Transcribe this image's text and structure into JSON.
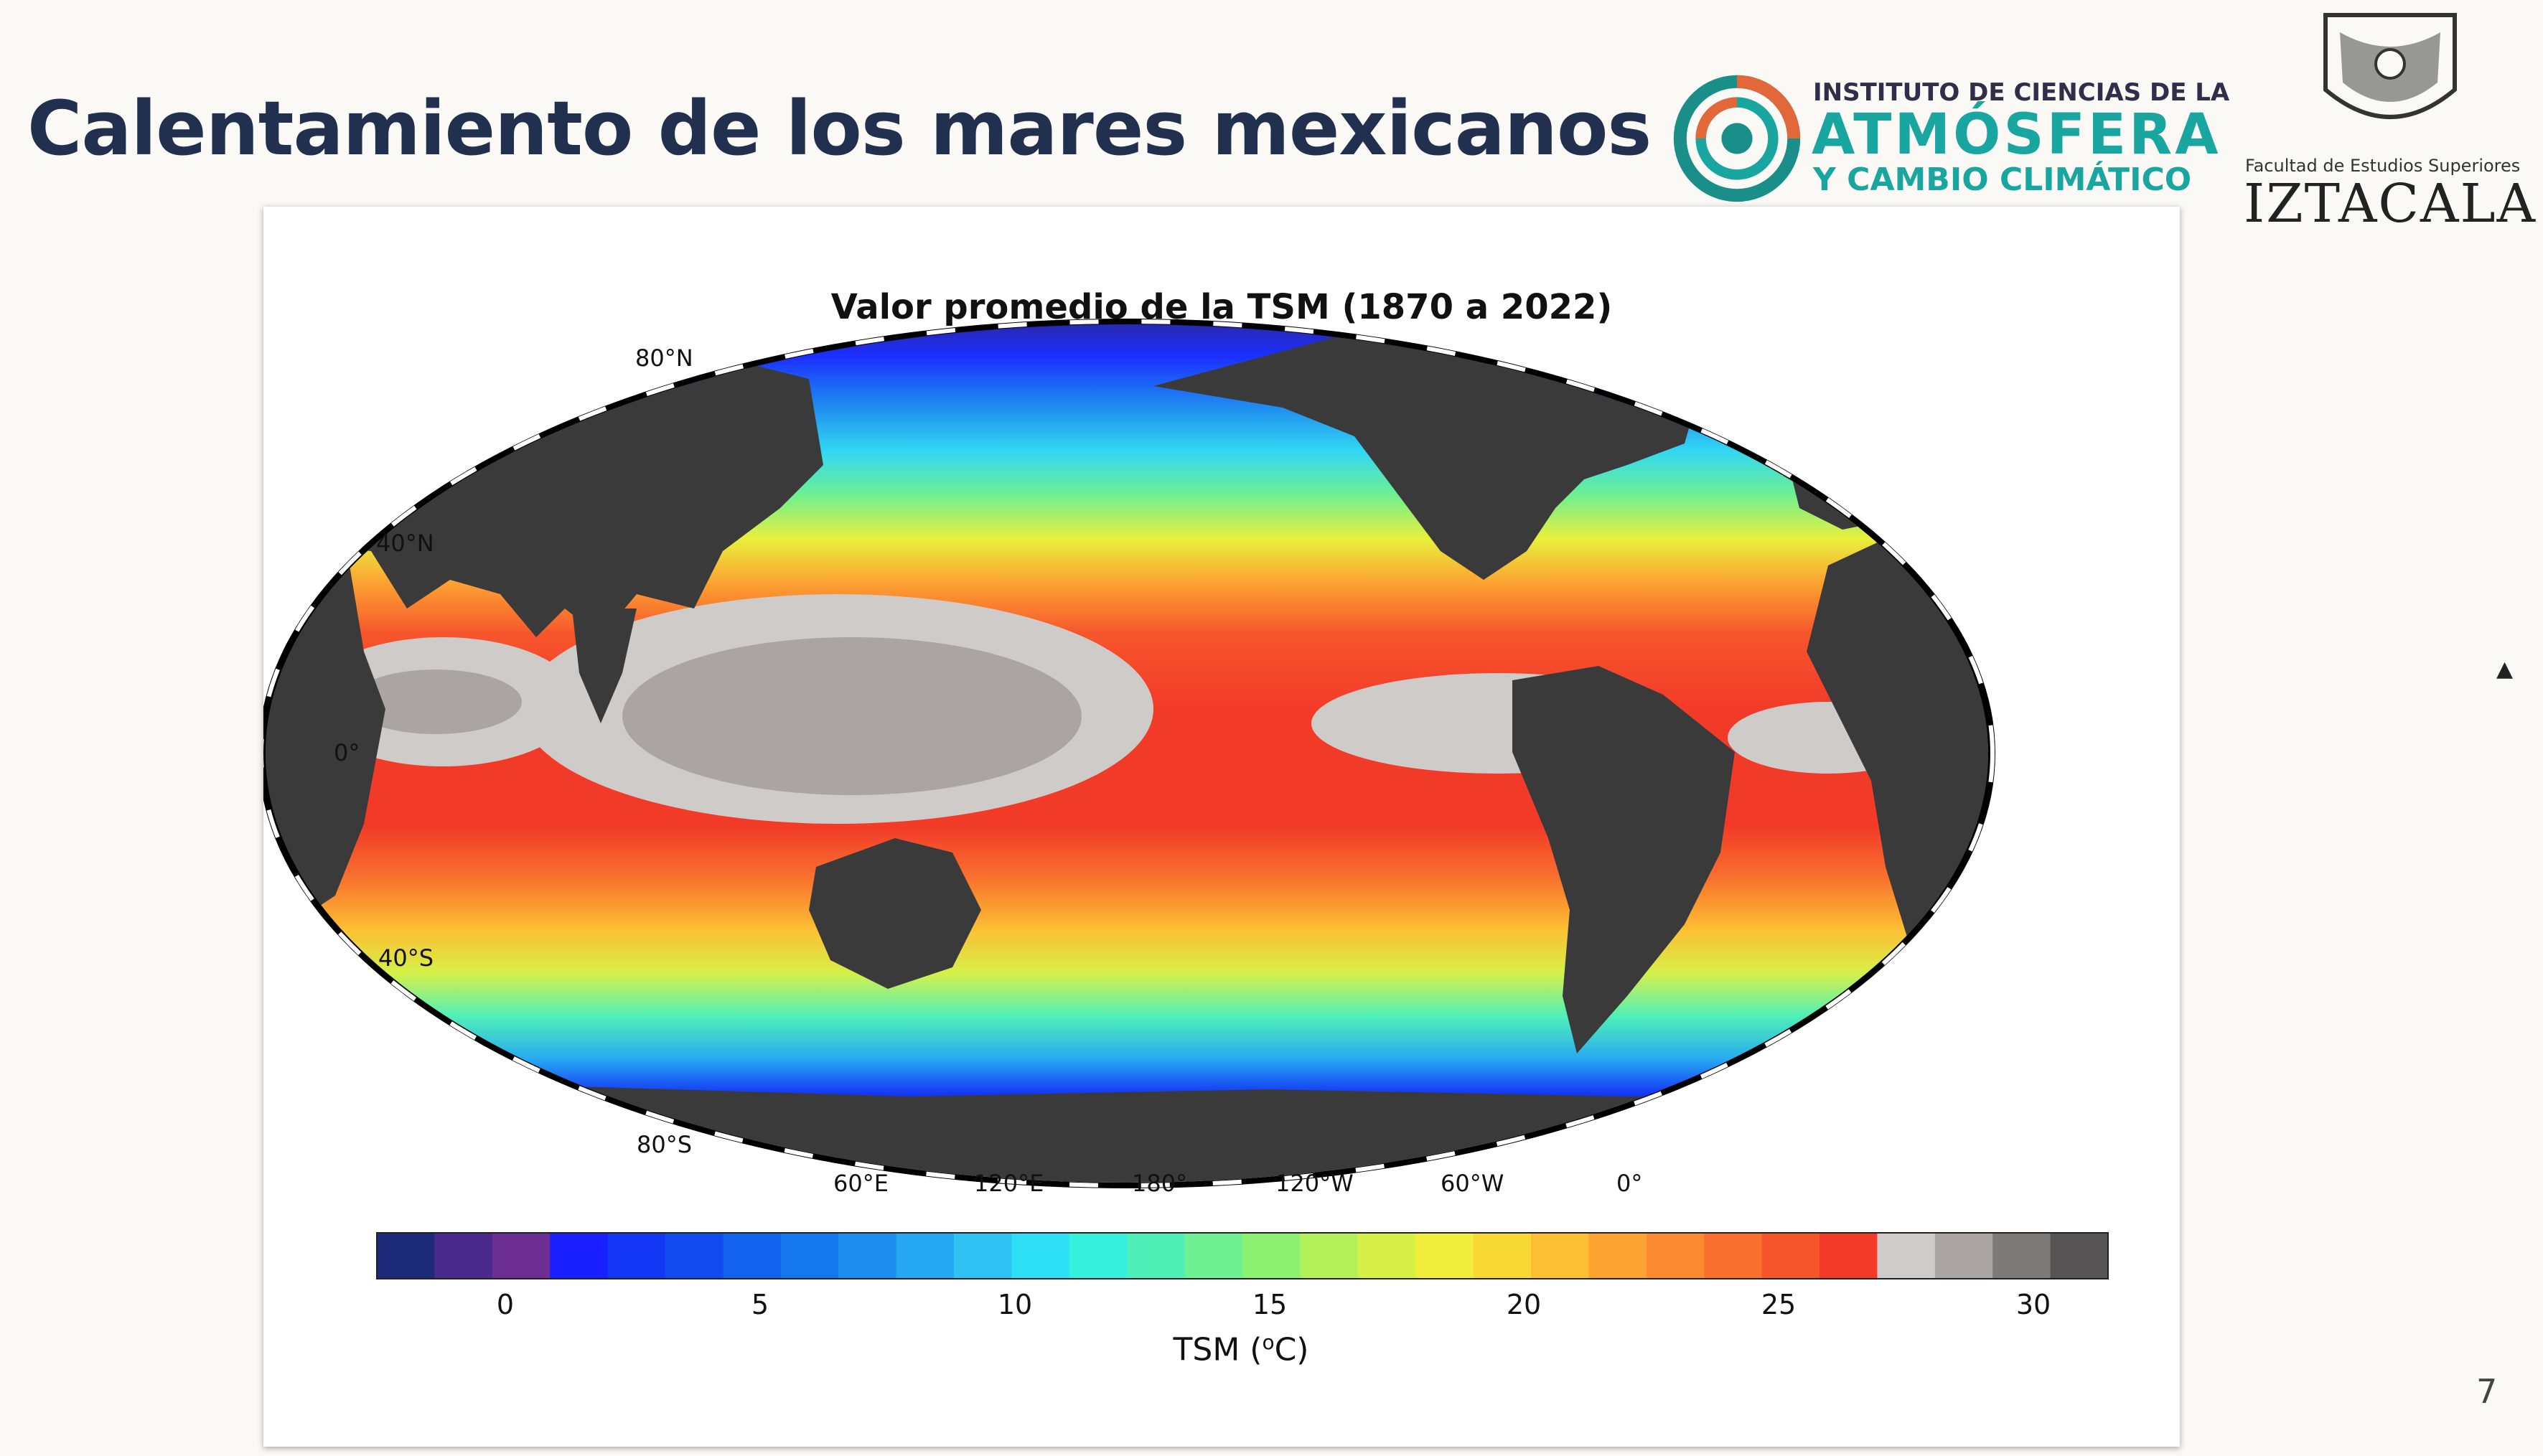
{
  "slide": {
    "title": "Calentamiento de los mares mexicanos",
    "page_number": "7"
  },
  "logos": {
    "icac": {
      "line1": "INSTITUTO DE CIENCIAS DE LA",
      "line2": "ATMÓSFERA",
      "line3": "Y CAMBIO CLIMÁTICO"
    },
    "unam": {
      "line1": "Facultad de Estudios Superiores",
      "line2": "IZTACALA"
    }
  },
  "figure": {
    "title": "Valor promedio de la TSM (1870 a 2022)",
    "lat_labels": [
      "80°N",
      "40°N",
      "0°",
      "40°S",
      "80°S"
    ],
    "lon_labels": [
      "60°E",
      "120°E",
      "180°",
      "120°W",
      "60°W",
      "0°"
    ],
    "colorbar": {
      "label_main": "TSM (",
      "label_sup": "o",
      "label_end": "C)",
      "ticks": [
        "0",
        "5",
        "10",
        "15",
        "20",
        "25",
        "30"
      ],
      "colors": [
        "#1d2a7a",
        "#4a2a8c",
        "#6d2e92",
        "#1a1fff",
        "#1436f5",
        "#124cf0",
        "#1262ee",
        "#1577ec",
        "#1d8ef0",
        "#27a8f2",
        "#30c2f3",
        "#2ee0f5",
        "#34f0dc",
        "#4ff0b8",
        "#6ef092",
        "#8ef070",
        "#b4f05a",
        "#d6f048",
        "#f0ee3a",
        "#f7d834",
        "#fcbf33",
        "#fca432",
        "#fb8a30",
        "#f9702e",
        "#f6552c",
        "#f23a28",
        "#cfcbc8",
        "#aaa5a2",
        "#7e7a78",
        "#565454"
      ]
    }
  },
  "colors": {
    "title": "#22304f",
    "accent_teal": "#1aa6a0",
    "land": "#3a3a3a"
  }
}
